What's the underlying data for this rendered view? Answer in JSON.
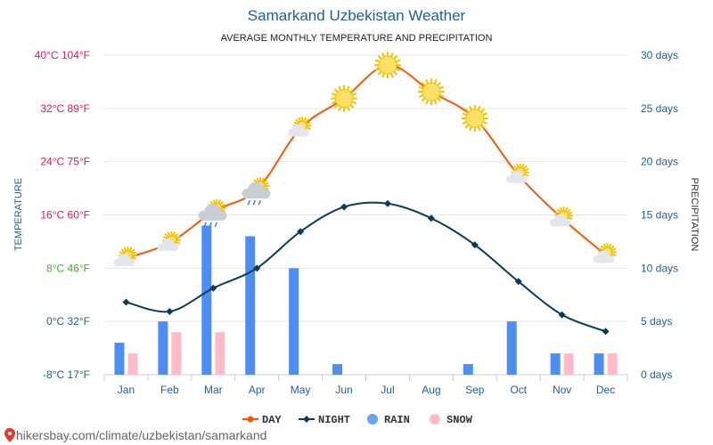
{
  "title": "Samarkand Uzbekistan Weather",
  "subtitle": "AVERAGE MONTHLY TEMPERATURE AND PRECIPITATION",
  "left_axis_title": "TEMPERATURE",
  "right_axis_title": "PRECIPITATION",
  "watermark": "hikersbay.com/climate/uzbekistan/samarkand",
  "colors": {
    "title": "#1f5f93",
    "day": "#ff5500",
    "night": "#0d3b55",
    "rain": "#4d8ef5",
    "snow": "#ffbcc8",
    "grid": "#e6e6e6",
    "right_axis": "#1f5f93",
    "month_labels": "#1f5f93"
  },
  "chart_data": {
    "type": "line+bar",
    "categories": [
      "Jan",
      "Feb",
      "Mar",
      "Apr",
      "May",
      "Jun",
      "Jul",
      "Aug",
      "Sep",
      "Oct",
      "Nov",
      "Dec"
    ],
    "temp_ylim": [
      -8,
      40
    ],
    "precip_ylim": [
      0,
      30
    ],
    "temp_ticks": [
      {
        "value": 40,
        "label": "40°C 104°F",
        "color": "#e8185a"
      },
      {
        "value": 32,
        "label": "32°C 89°F",
        "color": "#e8185a"
      },
      {
        "value": 24,
        "label": "24°C 75°F",
        "color": "#e8185a"
      },
      {
        "value": 16,
        "label": "16°C 60°F",
        "color": "#e8185a"
      },
      {
        "value": 8,
        "label": "8°C 46°F",
        "color": "#3fae2a"
      },
      {
        "value": 0,
        "label": "0°C 32°F",
        "color": "#1f5f93"
      },
      {
        "value": -8,
        "label": "-8°C 17°F",
        "color": "#1f5f93"
      }
    ],
    "precip_ticks": [
      {
        "value": 30,
        "label": "30 days"
      },
      {
        "value": 25,
        "label": "25 days"
      },
      {
        "value": 20,
        "label": "20 days"
      },
      {
        "value": 15,
        "label": "15 days"
      },
      {
        "value": 10,
        "label": "10 days"
      },
      {
        "value": 5,
        "label": "5 days"
      },
      {
        "value": 0,
        "label": "0 days"
      }
    ],
    "series": [
      {
        "name": "DAY",
        "kind": "line",
        "unit": "°C",
        "values": [
          9.5,
          11.8,
          16.5,
          19.8,
          29.0,
          33.5,
          38.5,
          34.5,
          30.5,
          22.0,
          15.5,
          10.0
        ]
      },
      {
        "name": "NIGHT",
        "kind": "line",
        "unit": "°C",
        "values": [
          2.9,
          1.5,
          5.0,
          8.0,
          13.5,
          17.2,
          17.7,
          15.5,
          11.5,
          6.0,
          1.0,
          -1.5
        ]
      },
      {
        "name": "RAIN",
        "kind": "bar",
        "unit": "days",
        "values": [
          3,
          5,
          14,
          13,
          10,
          1,
          0,
          0,
          1,
          5,
          2,
          2
        ]
      },
      {
        "name": "SNOW",
        "kind": "bar",
        "unit": "days",
        "values": [
          2,
          4,
          4,
          0,
          0,
          0,
          0,
          0,
          0,
          0,
          2,
          2
        ]
      }
    ],
    "weather_icons": [
      "partly-cloudy-icon",
      "partly-cloudy-icon",
      "rain-cloud-icon",
      "rain-cloud-icon",
      "partly-cloudy-icon",
      "sun-icon",
      "sun-icon",
      "sun-icon",
      "sun-icon",
      "partly-cloudy-icon",
      "partly-cloudy-icon",
      "partly-cloudy-icon"
    ],
    "legend": [
      "DAY",
      "NIGHT",
      "RAIN",
      "SNOW"
    ],
    "legend_position": "bottom"
  }
}
